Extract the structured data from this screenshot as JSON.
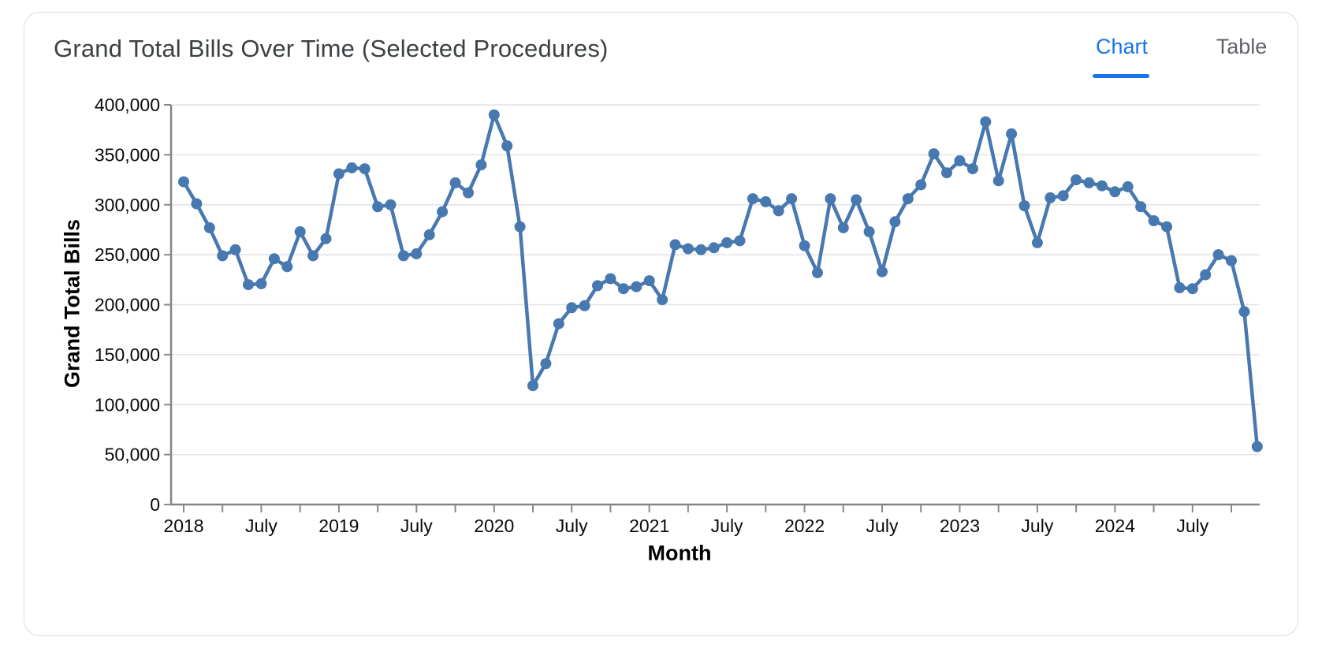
{
  "header": {
    "title": "Grand Total Bills Over Time (Selected Procedures)",
    "tabs": [
      {
        "label": "Chart",
        "active": true
      },
      {
        "label": "Table",
        "active": false
      }
    ],
    "accent_color": "#1a73e8",
    "inactive_tab_color": "#5f6368"
  },
  "chart_data": {
    "type": "line",
    "title": "Grand Total Bills Over Time (Selected Procedures)",
    "xlabel": "Month",
    "ylabel": "Grand Total Bills",
    "legend": "none",
    "grid": "horizontal",
    "line_color": "#4878b0",
    "marker": "circle",
    "ylim": [
      0,
      400000
    ],
    "ytick_step": 50000,
    "ytick_labels": [
      "0",
      "50,000",
      "100,000",
      "150,000",
      "200,000",
      "250,000",
      "300,000",
      "350,000",
      "400,000"
    ],
    "xtick_every_months": 3,
    "xtick_labels": [
      "2018",
      "July",
      "2019",
      "July",
      "2020",
      "July",
      "2021",
      "July",
      "2022",
      "July",
      "2023",
      "July",
      "2024",
      "July"
    ],
    "x": [
      "Jan 2018",
      "Feb 2018",
      "Mar 2018",
      "Apr 2018",
      "May 2018",
      "Jun 2018",
      "Jul 2018",
      "Aug 2018",
      "Sep 2018",
      "Oct 2018",
      "Nov 2018",
      "Dec 2018",
      "Jan 2019",
      "Feb 2019",
      "Mar 2019",
      "Apr 2019",
      "May 2019",
      "Jun 2019",
      "Jul 2019",
      "Aug 2019",
      "Sep 2019",
      "Oct 2019",
      "Nov 2019",
      "Dec 2019",
      "Jan 2020",
      "Feb 2020",
      "Mar 2020",
      "Apr 2020",
      "May 2020",
      "Jun 2020",
      "Jul 2020",
      "Aug 2020",
      "Sep 2020",
      "Oct 2020",
      "Nov 2020",
      "Dec 2020",
      "Jan 2021",
      "Feb 2021",
      "Mar 2021",
      "Apr 2021",
      "May 2021",
      "Jun 2021",
      "Jul 2021",
      "Aug 2021",
      "Sep 2021",
      "Oct 2021",
      "Nov 2021",
      "Dec 2021",
      "Jan 2022",
      "Feb 2022",
      "Mar 2022",
      "Apr 2022",
      "May 2022",
      "Jun 2022",
      "Jul 2022",
      "Aug 2022",
      "Sep 2022",
      "Oct 2022",
      "Nov 2022",
      "Dec 2022",
      "Jan 2023",
      "Feb 2023",
      "Mar 2023",
      "Apr 2023",
      "May 2023",
      "Jun 2023",
      "Jul 2023",
      "Aug 2023",
      "Sep 2023",
      "Oct 2023",
      "Nov 2023",
      "Dec 2023",
      "Jan 2024",
      "Feb 2024",
      "Mar 2024",
      "Apr 2024",
      "May 2024",
      "Jun 2024",
      "Jul 2024",
      "Aug 2024",
      "Sep 2024",
      "Oct 2024",
      "Nov 2024",
      "Dec 2024"
    ],
    "values": [
      323000,
      301000,
      277000,
      249000,
      255000,
      220000,
      221000,
      246000,
      238000,
      273000,
      249000,
      266000,
      331000,
      337000,
      336000,
      298000,
      300000,
      249000,
      251000,
      270000,
      293000,
      322000,
      312000,
      340000,
      390000,
      359000,
      278000,
      119000,
      141000,
      181000,
      197000,
      199000,
      219000,
      226000,
      216000,
      218000,
      224000,
      205000,
      260000,
      256000,
      255000,
      257000,
      262000,
      264000,
      306000,
      303000,
      294000,
      306000,
      259000,
      232000,
      306000,
      277000,
      305000,
      273000,
      233000,
      283000,
      306000,
      320000,
      351000,
      332000,
      344000,
      336000,
      383000,
      324000,
      371000,
      299000,
      262000,
      307000,
      309000,
      325000,
      322000,
      319000,
      313000,
      318000,
      298000,
      284000,
      278000,
      217000,
      216000,
      230000,
      250000,
      244000,
      193000,
      58000
    ]
  }
}
